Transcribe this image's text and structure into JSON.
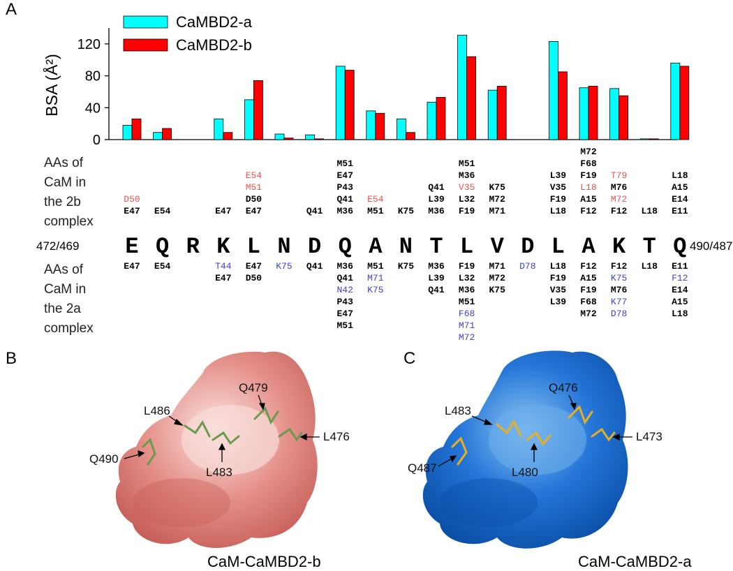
{
  "panels": {
    "a": "A",
    "b": "B",
    "c": "C"
  },
  "chart_data": {
    "type": "bar",
    "ylabel": "BSA (Å²)",
    "ylim": [
      0,
      140
    ],
    "yticks": [
      0,
      40,
      80,
      120
    ],
    "legend_position": "top-left",
    "categories": [
      "E",
      "Q",
      "R",
      "K",
      "L",
      "N",
      "D",
      "Q",
      "A",
      "N",
      "T",
      "L",
      "V",
      "D",
      "L",
      "A",
      "K",
      "T",
      "Q"
    ],
    "series": [
      {
        "name": "CaMBD2-a",
        "color": "#00ffff",
        "values": [
          18,
          9,
          0,
          26,
          50,
          7,
          6,
          92,
          36,
          26,
          47,
          131,
          62,
          0,
          123,
          65,
          64,
          1,
          96
        ]
      },
      {
        "name": "CaMBD2-b",
        "color": "#ff0000",
        "values": [
          26,
          14,
          0,
          9,
          74,
          2,
          1,
          87,
          33,
          9,
          53,
          104,
          67,
          0,
          85,
          67,
          55,
          1,
          92
        ]
      }
    ]
  },
  "sequence": {
    "start_label": "472/469",
    "end_label": "490/487",
    "letters": [
      "E",
      "Q",
      "R",
      "K",
      "L",
      "N",
      "D",
      "Q",
      "A",
      "N",
      "T",
      "L",
      "V",
      "D",
      "L",
      "A",
      "K",
      "T",
      "Q"
    ]
  },
  "headers": {
    "top": [
      "AAs of",
      "CaM in",
      "the 2b",
      "complex"
    ],
    "bottom": [
      "AAs of",
      "CaM in",
      "the 2a",
      "complex"
    ]
  },
  "contacts_2b": [
    [
      {
        "t": "D50",
        "c": "r"
      },
      {
        "t": "E47",
        "c": "k"
      }
    ],
    [
      {
        "t": "E54",
        "c": "k"
      }
    ],
    [],
    [
      {
        "t": "E47",
        "c": "k"
      }
    ],
    [
      {
        "t": "E54",
        "c": "r"
      },
      {
        "t": "M51",
        "c": "r"
      },
      {
        "t": "D50",
        "c": "k"
      },
      {
        "t": "E47",
        "c": "k"
      }
    ],
    [],
    [
      {
        "t": "Q41",
        "c": "k"
      }
    ],
    [
      {
        "t": "M51",
        "c": "k"
      },
      {
        "t": "E47",
        "c": "k"
      },
      {
        "t": "P43",
        "c": "k"
      },
      {
        "t": "Q41",
        "c": "k"
      },
      {
        "t": "M36",
        "c": "k"
      }
    ],
    [
      {
        "t": "E54",
        "c": "r"
      },
      {
        "t": "M51",
        "c": "k"
      }
    ],
    [
      {
        "t": "K75",
        "c": "k"
      }
    ],
    [
      {
        "t": "Q41",
        "c": "k"
      },
      {
        "t": "L39",
        "c": "k"
      },
      {
        "t": "M36",
        "c": "k"
      }
    ],
    [
      {
        "t": "M51",
        "c": "k"
      },
      {
        "t": "M36",
        "c": "k"
      },
      {
        "t": "V35",
        "c": "r"
      },
      {
        "t": "L32",
        "c": "k"
      },
      {
        "t": "F19",
        "c": "k"
      }
    ],
    [
      {
        "t": "K75",
        "c": "k"
      },
      {
        "t": "M72",
        "c": "k"
      },
      {
        "t": "M71",
        "c": "k"
      }
    ],
    [],
    [
      {
        "t": "L39",
        "c": "k"
      },
      {
        "t": "V35",
        "c": "k"
      },
      {
        "t": "F19",
        "c": "k"
      },
      {
        "t": "L18",
        "c": "k"
      }
    ],
    [
      {
        "t": "M72",
        "c": "k"
      },
      {
        "t": "F68",
        "c": "k"
      },
      {
        "t": "F19",
        "c": "k"
      },
      {
        "t": "L18",
        "c": "r"
      },
      {
        "t": "A15",
        "c": "k"
      },
      {
        "t": "F12",
        "c": "k"
      }
    ],
    [
      {
        "t": "T79",
        "c": "r"
      },
      {
        "t": "M76",
        "c": "k"
      },
      {
        "t": "M72",
        "c": "r"
      },
      {
        "t": "F12",
        "c": "k"
      }
    ],
    [
      {
        "t": "L18",
        "c": "k"
      }
    ],
    [
      {
        "t": "L18",
        "c": "k"
      },
      {
        "t": "A15",
        "c": "k"
      },
      {
        "t": "E14",
        "c": "k"
      },
      {
        "t": "E11",
        "c": "k"
      }
    ]
  ],
  "contacts_2a": [
    [
      {
        "t": "E47",
        "c": "k"
      }
    ],
    [
      {
        "t": "E54",
        "c": "k"
      }
    ],
    [],
    [
      {
        "t": "T44",
        "c": "b"
      },
      {
        "t": "E47",
        "c": "k"
      }
    ],
    [
      {
        "t": "E47",
        "c": "k"
      },
      {
        "t": "D50",
        "c": "k"
      }
    ],
    [
      {
        "t": "K75",
        "c": "b"
      }
    ],
    [
      {
        "t": "Q41",
        "c": "k"
      }
    ],
    [
      {
        "t": "M36",
        "c": "k"
      },
      {
        "t": "Q41",
        "c": "k"
      },
      {
        "t": "N42",
        "c": "b"
      },
      {
        "t": "P43",
        "c": "k"
      },
      {
        "t": "E47",
        "c": "k"
      },
      {
        "t": "M51",
        "c": "k"
      }
    ],
    [
      {
        "t": "M51",
        "c": "k"
      },
      {
        "t": "M71",
        "c": "b"
      },
      {
        "t": "K75",
        "c": "b"
      }
    ],
    [
      {
        "t": "K75",
        "c": "k"
      }
    ],
    [
      {
        "t": "M36",
        "c": "k"
      },
      {
        "t": "L39",
        "c": "k"
      },
      {
        "t": "Q41",
        "c": "k"
      }
    ],
    [
      {
        "t": "F19",
        "c": "k"
      },
      {
        "t": "L32",
        "c": "k"
      },
      {
        "t": "M36",
        "c": "k"
      },
      {
        "t": "M51",
        "c": "k"
      },
      {
        "t": "F68",
        "c": "b"
      },
      {
        "t": "M71",
        "c": "b"
      },
      {
        "t": "M72",
        "c": "b"
      }
    ],
    [
      {
        "t": "M71",
        "c": "k"
      },
      {
        "t": "M72",
        "c": "k"
      },
      {
        "t": "K75",
        "c": "k"
      }
    ],
    [
      {
        "t": "D78",
        "c": "b"
      }
    ],
    [
      {
        "t": "L18",
        "c": "k"
      },
      {
        "t": "F19",
        "c": "k"
      },
      {
        "t": "V35",
        "c": "k"
      },
      {
        "t": "L39",
        "c": "k"
      }
    ],
    [
      {
        "t": "F12",
        "c": "k"
      },
      {
        "t": "A15",
        "c": "k"
      },
      {
        "t": "F19",
        "c": "k"
      },
      {
        "t": "F68",
        "c": "k"
      },
      {
        "t": "M72",
        "c": "k"
      }
    ],
    [
      {
        "t": "F12",
        "c": "k"
      },
      {
        "t": "K75",
        "c": "b"
      },
      {
        "t": "M76",
        "c": "k"
      },
      {
        "t": "K77",
        "c": "b"
      },
      {
        "t": "D78",
        "c": "b"
      }
    ],
    [
      {
        "t": "L18",
        "c": "k"
      }
    ],
    [
      {
        "t": "E11",
        "c": "k"
      },
      {
        "t": "F12",
        "c": "b"
      },
      {
        "t": "E14",
        "c": "k"
      },
      {
        "t": "A15",
        "c": "k"
      },
      {
        "t": "L18",
        "c": "k"
      }
    ]
  ],
  "contact_colors": {
    "k": "#000000",
    "r": "#f05050",
    "b": "#4040d8"
  },
  "structure_b": {
    "caption": "CaM-CaMBD2-b",
    "surface_color": "#e0807a",
    "stick_color": "#6b9a4a",
    "labels": {
      "q490": "Q490",
      "l486": "L486",
      "l483": "L483",
      "q479": "Q479",
      "l476": "L476"
    }
  },
  "structure_c": {
    "caption": "CaM-CaMBD2-a",
    "surface_color": "#1e6fd0",
    "stick_color": "#e8b020",
    "labels": {
      "q487": "Q487",
      "l483": "L483",
      "l480": "L480",
      "q476": "Q476",
      "l473": "L473"
    }
  }
}
